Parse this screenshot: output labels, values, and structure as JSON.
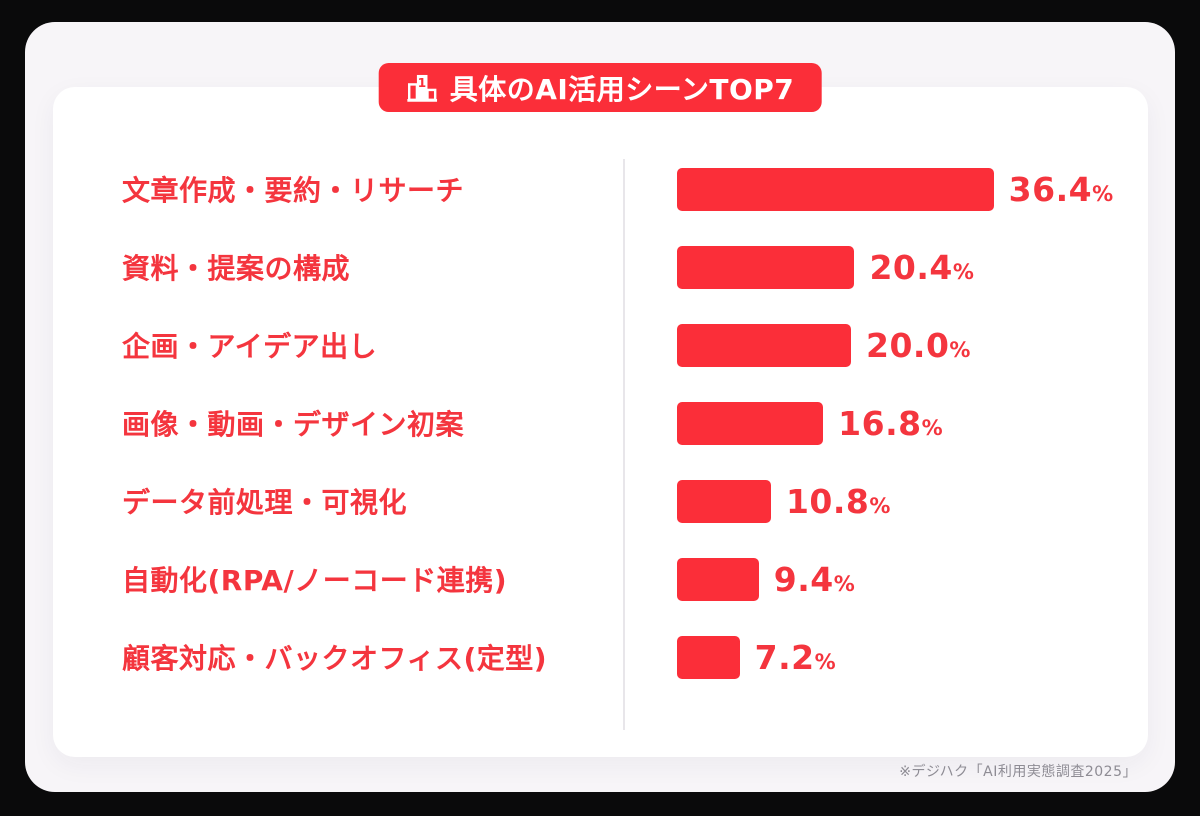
{
  "page": {
    "badge": {
      "label": "具体のAI活用シーンTOP7",
      "icon": "podium-ranking-icon"
    },
    "footer": {
      "source_note": "※デジハク「AI利用実態調査2025」"
    },
    "colors": {
      "accent_red": "#fb2e39",
      "text_red": "#f4353e",
      "panel_bg": "#f7f5f8",
      "card_bg": "#ffffff",
      "divider": "#e8e6ea",
      "footer_text": "#8e8c94"
    }
  },
  "chart_data": {
    "type": "bar",
    "orientation": "horizontal",
    "title": "具体のAI活用シーンTOP7",
    "categories": [
      "文章作成・要約・リサーチ",
      "資料・提案の構成",
      "企画・アイデア出し",
      "画像・動画・デザイン初案",
      "データ前処理・可視化",
      "自動化(RPA/ノーコード連携)",
      "顧客対応・バックオフィス(定型)"
    ],
    "values": [
      36.4,
      20.4,
      20.0,
      16.8,
      10.8,
      9.4,
      7.2
    ],
    "value_labels": [
      "36.4",
      "20.4",
      "20.0",
      "16.8",
      "10.8",
      "9.4",
      "7.2"
    ],
    "percent_suffix": "%",
    "unit": "%",
    "xlim": [
      0,
      40
    ],
    "bar_color": "#fb2e39",
    "grid": false,
    "legend": false,
    "source": "※デジハク「AI利用実態調査2025」"
  }
}
